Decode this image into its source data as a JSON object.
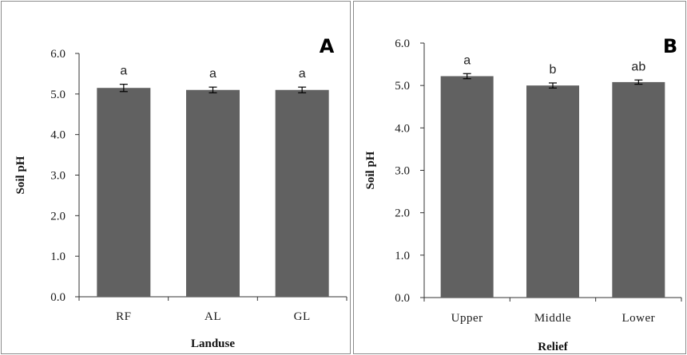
{
  "chart_data": [
    {
      "type": "bar",
      "panel_label": "A",
      "categories": [
        "RF",
        "AL",
        "GL"
      ],
      "values": [
        5.15,
        5.1,
        5.1
      ],
      "errors": [
        0.09,
        0.07,
        0.07
      ],
      "significance_letters": [
        "a",
        "a",
        "a"
      ],
      "xlabel": "Landuse",
      "ylabel": "Soil pH",
      "ylim": [
        0.0,
        6.0
      ],
      "yticks": [
        "0.0",
        "1.0",
        "2.0",
        "3.0",
        "4.0",
        "5.0",
        "6.0"
      ],
      "bar_color": "#616161",
      "grid": false
    },
    {
      "type": "bar",
      "panel_label": "B",
      "categories": [
        "Upper",
        "Middle",
        "Lower"
      ],
      "values": [
        5.22,
        5.0,
        5.08
      ],
      "errors": [
        0.06,
        0.06,
        0.05
      ],
      "significance_letters": [
        "a",
        "b",
        "ab"
      ],
      "xlabel": "Relief",
      "ylabel": "Soil pH",
      "ylim": [
        0.0,
        6.0
      ],
      "yticks": [
        "0.0",
        "1.0",
        "2.0",
        "3.0",
        "4.0",
        "5.0",
        "6.0"
      ],
      "bar_color": "#616161",
      "grid": false
    }
  ]
}
